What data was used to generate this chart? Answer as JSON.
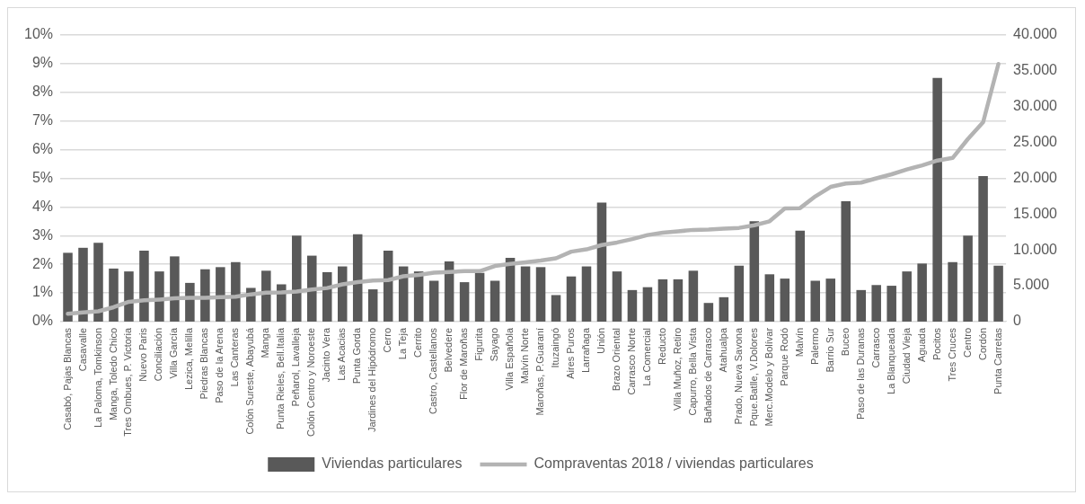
{
  "chart_data": {
    "type": "bar",
    "categories": [
      "Casabó, Pajas Blancas",
      "Casavalle",
      "La Paloma, Tomkinson",
      "Manga, Toledo Chico",
      "Tres Ombues, P. Victoria",
      "Nuevo Paris",
      "Conciliación",
      "Villa García",
      "Lezica, Melilla",
      "Piedras Blancas",
      "Paso de la Arena",
      "Las Canteras",
      "Colón Sureste, Abayubá",
      "Manga",
      "Punta Rieles, Bell.Italia",
      "Peñarol, Lavalleja",
      "Colón Centro y Noroeste",
      "Jacinto Vera",
      "Las Acacias",
      "Punta Gorda",
      "Jardines del Hipódromo",
      "Cerro",
      "La Teja",
      "Cerrito",
      "Castro, Castellanos",
      "Belvedere",
      "Flor de Maroñas",
      "Figurita",
      "Sayago",
      "Villa Española",
      "Malvín Norte",
      "Maroñas, P.Guaraní",
      "Ituzaingó",
      "Aires Puros",
      "Larrañaga",
      "Unión",
      "Brazo Oriental",
      "Carrasco Norte",
      "La Comercial",
      "Reducto",
      "Villa Muñoz, Retiro",
      "Capurro, Bella Vista",
      "Bañados de Carrasco",
      "Atahualpa",
      "Prado, Nueva Savona",
      "Pque.Batlle, V.Dolores",
      "Merc.Modelo y Bolívar",
      "Parque Rodó",
      "Malvín",
      "Palermo",
      "Barrio Sur",
      "Buceo",
      "Paso de las Duranas",
      "Carrasco",
      "La Blanqueada",
      "Ciudad Vieja",
      "Aguada",
      "Pocitos",
      "Tres Cruces",
      "Centro",
      "Cordón",
      "Punta Carretas"
    ],
    "series": [
      {
        "name": "Viviendas particulares",
        "axis": "y2",
        "color": "#595959",
        "values": [
          9600,
          10300,
          11000,
          7400,
          7000,
          9900,
          7000,
          9100,
          5400,
          7300,
          7600,
          8300,
          4700,
          7100,
          5200,
          12000,
          9200,
          6900,
          7700,
          12200,
          4500,
          9900,
          7700,
          7000,
          5700,
          8400,
          5500,
          6800,
          5700,
          8900,
          7700,
          7600,
          3700,
          6300,
          7700,
          16600,
          7000,
          4400,
          4800,
          5900,
          5900,
          7100,
          2600,
          3400,
          7800,
          14000,
          6600,
          6000,
          12700,
          5700,
          6000,
          16800,
          4400,
          5100,
          5000,
          7000,
          8100,
          34000,
          8300,
          12000,
          20300,
          7800
        ]
      },
      {
        "name": "Compraventas 2018 / viviendas particulares",
        "type": "line",
        "color": "#b3b3b3",
        "values": [
          0.27,
          0.32,
          0.36,
          0.5,
          0.69,
          0.74,
          0.77,
          0.81,
          0.83,
          0.83,
          0.85,
          0.87,
          0.95,
          1.01,
          1.02,
          1.05,
          1.12,
          1.17,
          1.3,
          1.38,
          1.43,
          1.45,
          1.58,
          1.63,
          1.71,
          1.73,
          1.76,
          1.76,
          1.94,
          2.01,
          2.07,
          2.13,
          2.21,
          2.44,
          2.52,
          2.67,
          2.76,
          2.88,
          3.02,
          3.1,
          3.15,
          3.2,
          3.21,
          3.24,
          3.27,
          3.36,
          3.5,
          3.95,
          3.96,
          4.37,
          4.7,
          4.82,
          4.85,
          5.0,
          5.14,
          5.31,
          5.45,
          5.62,
          5.71,
          6.37,
          6.96,
          8.99
        ]
      }
    ],
    "ylim": [
      0,
      10
    ],
    "yticks": [
      {
        "value": 0,
        "label": "0%"
      },
      {
        "value": 1,
        "label": "1%"
      },
      {
        "value": 2,
        "label": "2%"
      },
      {
        "value": 3,
        "label": "3%"
      },
      {
        "value": 4,
        "label": "4%"
      },
      {
        "value": 5,
        "label": "5%"
      },
      {
        "value": 6,
        "label": "6%"
      },
      {
        "value": 7,
        "label": "7%"
      },
      {
        "value": 8,
        "label": "8%"
      },
      {
        "value": 9,
        "label": "9%"
      },
      {
        "value": 10,
        "label": "10%"
      }
    ],
    "y2lim": [
      0,
      40000
    ],
    "y2ticks": [
      0,
      {
        "value": 5000,
        "label": "5.000"
      },
      {
        "value": 10000,
        "label": "10.000"
      },
      {
        "value": 15000,
        "label": "15.000"
      },
      {
        "value": 20000,
        "label": "20.000"
      },
      {
        "value": 25000,
        "label": "25.000"
      },
      {
        "value": 30000,
        "label": "30.000"
      },
      {
        "value": 35000,
        "label": "35.000"
      },
      {
        "value": 40000,
        "label": "40.000"
      }
    ],
    "grid": "y",
    "legend": "bottom",
    "marker": "none",
    "line_style": "solid"
  }
}
